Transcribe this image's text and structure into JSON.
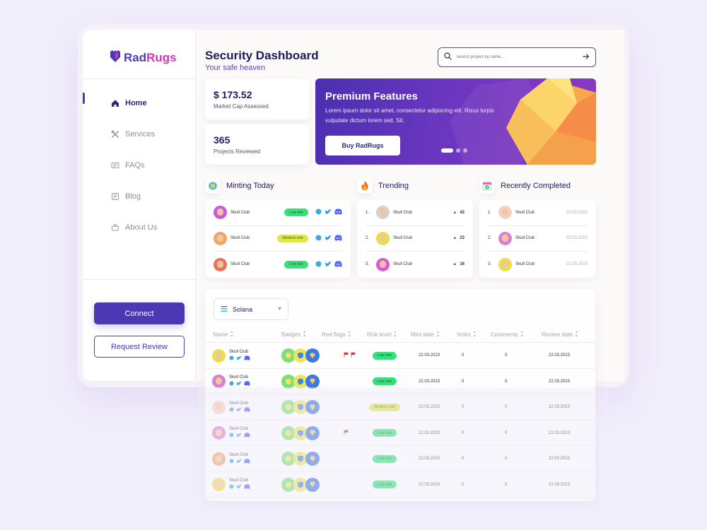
{
  "brand": {
    "name_part1": "Rad",
    "name_part2": "Rugs"
  },
  "sidebar": {
    "items": [
      {
        "label": "Home",
        "icon": "home-icon",
        "active": true
      },
      {
        "label": "Services",
        "icon": "tools-icon",
        "active": false
      },
      {
        "label": "FAQs",
        "icon": "faq-icon",
        "active": false
      },
      {
        "label": "Blog",
        "icon": "blog-icon",
        "active": false
      },
      {
        "label": "About Us",
        "icon": "team-icon",
        "active": false
      }
    ],
    "connect_label": "Connect",
    "request_review_label": "Request Review"
  },
  "header": {
    "title": "Security Dashboard",
    "subtitle": "Your safe heaven",
    "search_placeholder": "Search project by name..."
  },
  "stats": [
    {
      "value": "$ 173.52",
      "label": "Market Cap Assessed"
    },
    {
      "value": "365",
      "label": "Projects Reviewed"
    }
  ],
  "banner": {
    "title": "Premium Features",
    "text": "Lorem ipsum dolor sit amet, consectetur adipiscing elit. Risus turpis vulputate dictum lorem sed. Sit.",
    "button_label": "Buy RadRugs",
    "slide_count": 3,
    "active_slide": 1
  },
  "minting": {
    "title": "Minting Today",
    "rows": [
      {
        "name": "Skull Club",
        "risk": "Low risk",
        "risk_level": "low",
        "avatar_color": "#c95bd8"
      },
      {
        "name": "Skull Club",
        "risk": "Medium risk",
        "risk_level": "medium",
        "avatar_color": "#f0a56a"
      },
      {
        "name": "Skull Club",
        "risk": "Low risk",
        "risk_level": "low",
        "avatar_color": "#e8735a"
      }
    ]
  },
  "trending": {
    "title": "Trending",
    "rows": [
      {
        "rank": "1.",
        "name": "Skull Club",
        "votes": "42",
        "avatar_color": "#d8d0c8"
      },
      {
        "rank": "2.",
        "name": "Skull Club",
        "votes": "23",
        "avatar_color": "#e8df4a"
      },
      {
        "rank": "3.",
        "name": "Skull Club",
        "votes": "16",
        "avatar_color": "#d85bd0"
      }
    ]
  },
  "completed": {
    "title": "Recently Completed",
    "rows": [
      {
        "rank": "1.",
        "name": "Skull Club",
        "date": "22.03.2023",
        "avatar_color": "#f3d0c4"
      },
      {
        "rank": "2.",
        "name": "Skull Club",
        "date": "22.03.2023",
        "avatar_color": "#d880d8"
      },
      {
        "rank": "3.",
        "name": "Skull Club",
        "date": "22.03.2023",
        "avatar_color": "#e8df4a"
      }
    ]
  },
  "table": {
    "chain_select": "Solana",
    "columns": [
      "Name",
      "Badges",
      "Red flags",
      "Risk level",
      "Mint date",
      "Votes",
      "Comments",
      "Review date"
    ],
    "rows": [
      {
        "name": "Skull Club",
        "red_flags": 2,
        "risk": "Low risk",
        "risk_level": "low",
        "mint_date": "22.03.2023",
        "votes": "0",
        "comments": "0",
        "review_date": "22.03.2023",
        "avatar_color": "#e8df4a"
      },
      {
        "name": "Skull Club",
        "red_flags": 0,
        "risk": "Low risk",
        "risk_level": "low",
        "mint_date": "22.03.2023",
        "votes": "0",
        "comments": "0",
        "review_date": "22.03.2023",
        "avatar_color": "#d880d8"
      },
      {
        "name": "Skull Club",
        "red_flags": 0,
        "risk": "Medium risk",
        "risk_level": "medium",
        "mint_date": "22.03.2023",
        "votes": "0",
        "comments": "0",
        "review_date": "22.03.2023",
        "avatar_color": "#f3d0c4"
      },
      {
        "name": "Skull Club",
        "red_flags": 1,
        "risk": "Low risk",
        "risk_level": "low",
        "mint_date": "22.03.2023",
        "votes": "0",
        "comments": "0",
        "review_date": "22.03.2023",
        "avatar_color": "#d880d8"
      },
      {
        "name": "Skull Club",
        "red_flags": 0,
        "risk": "Low risk",
        "risk_level": "low",
        "mint_date": "22.03.2023",
        "votes": "0",
        "comments": "0",
        "review_date": "22.03.2023",
        "avatar_color": "#f0a56a"
      },
      {
        "name": "Skull Club",
        "red_flags": 0,
        "risk": "Low risk",
        "risk_level": "low",
        "mint_date": "22.03.2023",
        "votes": "0",
        "comments": "0",
        "review_date": "22.03.2023",
        "avatar_color": "#e8df4a"
      }
    ]
  },
  "colors": {
    "primary": "#4b39b4",
    "low_risk": "#38e07b",
    "medium_risk": "#dbe74a",
    "banner_start": "#4a2fb0",
    "banner_end": "#8a3ac0"
  }
}
